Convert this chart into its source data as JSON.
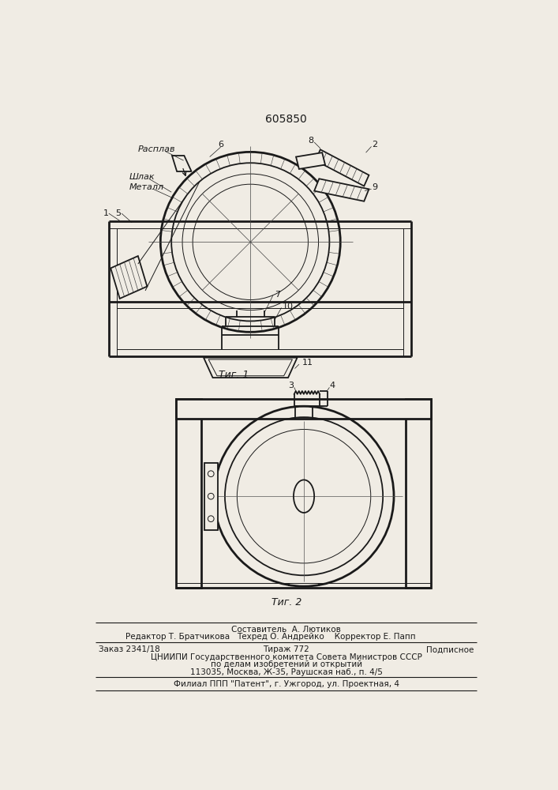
{
  "patent_number": "605850",
  "fig1_caption": "Τиг. 1",
  "fig2_caption": "Τиг. 2",
  "bg_color": "#f0ece4",
  "line_color": "#1a1a1a",
  "footer": {
    "line1_center": "Составитель  А. Лютиков",
    "line1_left": "Редактор Т. Братчикова",
    "line2_center": "Техред О. Андрейко    Корректор Е. Папп",
    "line3_left": "Заказ 2341/18",
    "line3_center": "Тираж 772",
    "line3_right": "Подписное",
    "line4": "ЦНИИПИ Государственного комитета Совета Министров СССР",
    "line5": "по делам изобретений и открытий",
    "line6": "113035, Москва, Ж-35, Раушская наб., п. 4/5",
    "line7": "Филиал ППП \"Патент\", г. Ужгород, ул. Проектная, 4"
  }
}
